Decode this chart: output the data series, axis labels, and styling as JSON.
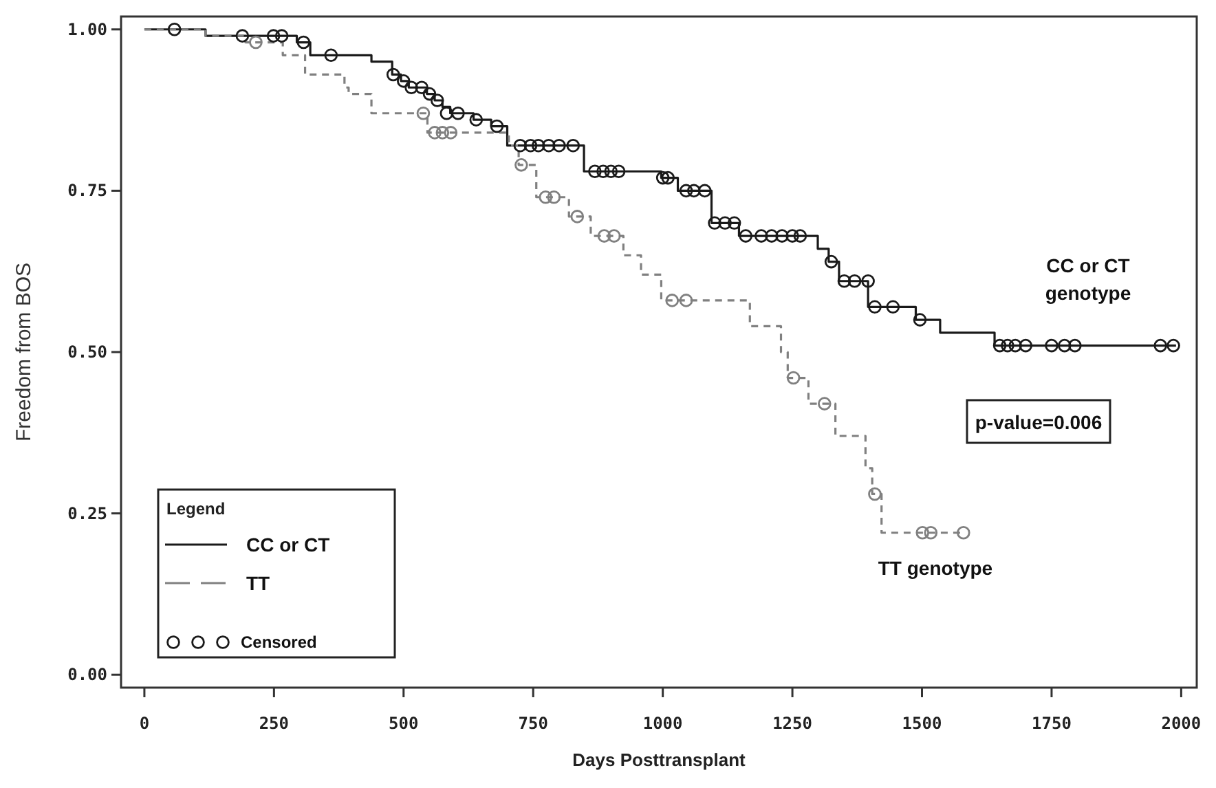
{
  "chart_data": {
    "type": "step",
    "xlabel": "Days Posttransplant",
    "ylabel": "Freedom from BOS",
    "xlim": [
      -45,
      2030
    ],
    "ylim": [
      -0.02,
      1.02
    ],
    "xticks": [
      0,
      250,
      500,
      750,
      1000,
      1250,
      1500,
      1750,
      2000
    ],
    "yticks": [
      {
        "value": 0,
        "label": "0.00"
      },
      {
        "value": 0.25,
        "label": "0.25"
      },
      {
        "value": 0.5,
        "label": "0.50"
      },
      {
        "value": 0.75,
        "label": "0.75"
      },
      {
        "value": 1,
        "label": "1.00"
      }
    ],
    "legend": "bottom left",
    "legend_title": "Legend",
    "grid": false,
    "series": [
      {
        "name": "CC or CT",
        "color": "#1a1a1a",
        "line_style": "solid",
        "x": [
          0,
          118,
          294,
          320,
          438,
          478,
          495,
          510,
          530,
          545,
          560,
          575,
          590,
          635,
          669,
          700,
          848,
          997,
          1029,
          1094,
          1147,
          1299,
          1320,
          1340,
          1396,
          1488,
          1535,
          1640,
          1990
        ],
        "values": [
          1.0,
          0.99,
          0.98,
          0.96,
          0.95,
          0.93,
          0.92,
          0.91,
          0.91,
          0.9,
          0.89,
          0.88,
          0.87,
          0.86,
          0.85,
          0.82,
          0.78,
          0.77,
          0.75,
          0.7,
          0.68,
          0.66,
          0.64,
          0.61,
          0.57,
          0.55,
          0.53,
          0.51,
          0.51
        ]
      },
      {
        "name": "TT",
        "color": "#808080",
        "line_style": "dashed",
        "x": [
          0,
          118,
          195,
          267,
          310,
          386,
          394,
          438,
          546,
          703,
          722,
          756,
          819,
          861,
          924,
          958,
          997,
          1168,
          1228,
          1241,
          1281,
          1333,
          1391,
          1404,
          1422,
          1580
        ],
        "values": [
          1.0,
          0.99,
          0.98,
          0.96,
          0.93,
          0.91,
          0.9,
          0.87,
          0.84,
          0.82,
          0.79,
          0.74,
          0.71,
          0.68,
          0.65,
          0.62,
          0.58,
          0.54,
          0.5,
          0.46,
          0.42,
          0.37,
          0.32,
          0.28,
          0.22,
          0.22
        ]
      },
      {
        "name": "Censored",
        "type": "scatter",
        "marker": "circle",
        "color": "#1a1a1a",
        "x": [
          58,
          189,
          249,
          265,
          307,
          360,
          480,
          500,
          515,
          535,
          550,
          565,
          583,
          605,
          640,
          680,
          725,
          745,
          760,
          780,
          800,
          827,
          869,
          885,
          900,
          915,
          1000,
          1010,
          1045,
          1060,
          1081,
          1100,
          1120,
          1138,
          1160,
          1190,
          1210,
          1230,
          1250,
          1265,
          1325,
          1350,
          1370,
          1396,
          1409,
          1444,
          1496,
          1650,
          1665,
          1680,
          1700,
          1750,
          1775,
          1795,
          1960,
          1985
        ],
        "values": [
          1.0,
          0.99,
          0.99,
          0.99,
          0.98,
          0.96,
          0.93,
          0.92,
          0.91,
          0.91,
          0.9,
          0.89,
          0.87,
          0.87,
          0.86,
          0.85,
          0.82,
          0.82,
          0.82,
          0.82,
          0.82,
          0.82,
          0.78,
          0.78,
          0.78,
          0.78,
          0.77,
          0.77,
          0.75,
          0.75,
          0.75,
          0.7,
          0.7,
          0.7,
          0.68,
          0.68,
          0.68,
          0.68,
          0.68,
          0.68,
          0.64,
          0.61,
          0.61,
          0.61,
          0.57,
          0.57,
          0.55,
          0.51,
          0.51,
          0.51,
          0.51,
          0.51,
          0.51,
          0.51,
          0.51,
          0.51
        ]
      },
      {
        "type": "scatter",
        "marker": "circle",
        "color": "#808080",
        "x": [
          215,
          538,
          560,
          575,
          591,
          727,
          774,
          790,
          835,
          887,
          906,
          1018,
          1045,
          1252,
          1312,
          1409,
          1501,
          1517,
          1580
        ],
        "values": [
          0.98,
          0.87,
          0.84,
          0.84,
          0.84,
          0.79,
          0.74,
          0.74,
          0.71,
          0.68,
          0.68,
          0.58,
          0.58,
          0.46,
          0.42,
          0.28,
          0.22,
          0.22,
          0.22
        ]
      }
    ],
    "annotations": [
      "CC or CT\ngenotype",
      "TT genotype",
      "p-value=0.006"
    ]
  }
}
